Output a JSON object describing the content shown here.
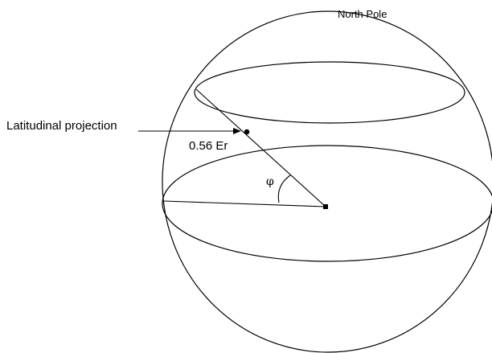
{
  "labels": {
    "north_pole": "North Pole",
    "projection": "Latitudinal projection",
    "distance": "0.56 Er",
    "angle": "φ"
  },
  "colors": {
    "stroke": "#000000",
    "background": "#ffffff"
  }
}
